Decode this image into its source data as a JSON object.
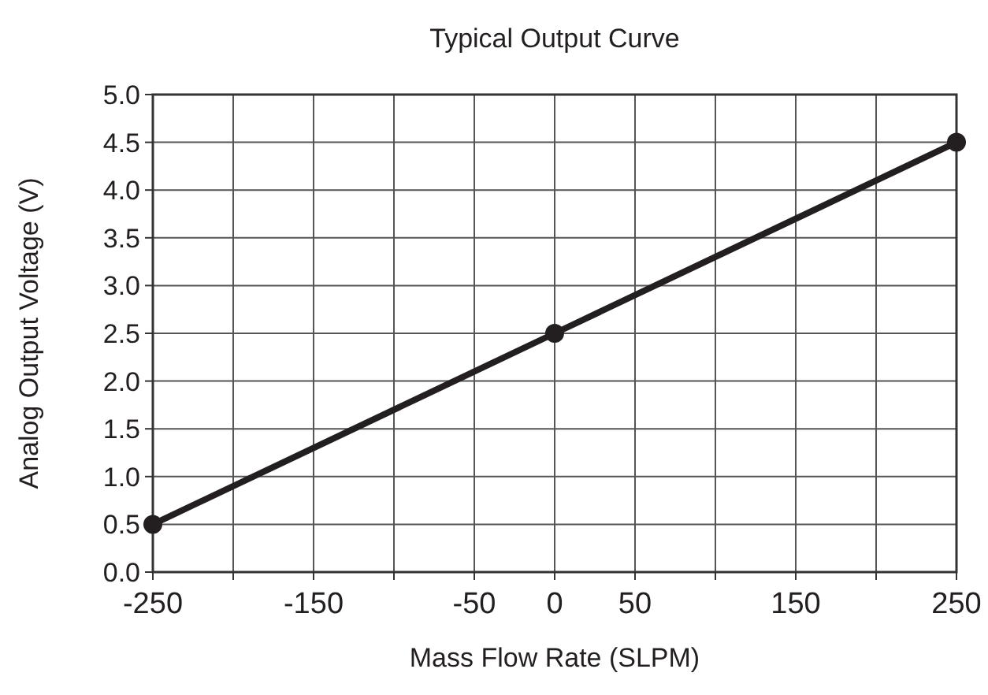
{
  "chart_data": {
    "type": "line",
    "title": "Typical Output Curve",
    "xlabel": "Mass Flow Rate (SLPM)",
    "ylabel": "Analog Output Voltage (V)",
    "x": [
      -250,
      0,
      250
    ],
    "series": [
      {
        "color": "#231f20",
        "values": [
          0.5,
          2.5,
          4.5
        ]
      }
    ],
    "xlim": [
      -250,
      250
    ],
    "xticks": [
      -250,
      {
        "value": -200,
        "label": null
      },
      -150,
      {
        "value": -100,
        "label": null
      },
      -50,
      0,
      50,
      {
        "value": 100,
        "label": null
      },
      150,
      {
        "value": 200,
        "label": null
      },
      250
    ],
    "ylim": [
      0,
      5
    ],
    "yticks": [
      {
        "value": 0,
        "label": "0.0"
      },
      {
        "value": 0.5,
        "label": "0.5"
      },
      {
        "value": 1,
        "label": "1.0"
      },
      {
        "value": 1.5,
        "label": "1.5"
      },
      {
        "value": 2,
        "label": "2.0"
      },
      {
        "value": 2.5,
        "label": "2.5"
      },
      {
        "value": 3,
        "label": "3.0"
      },
      {
        "value": 3.5,
        "label": "3.5"
      },
      {
        "value": 4,
        "label": "4.0"
      },
      {
        "value": 4.5,
        "label": "4.5"
      },
      {
        "value": 5,
        "label": "5.0"
      }
    ],
    "grid": true,
    "marker": "circle",
    "line_style": "solid"
  }
}
